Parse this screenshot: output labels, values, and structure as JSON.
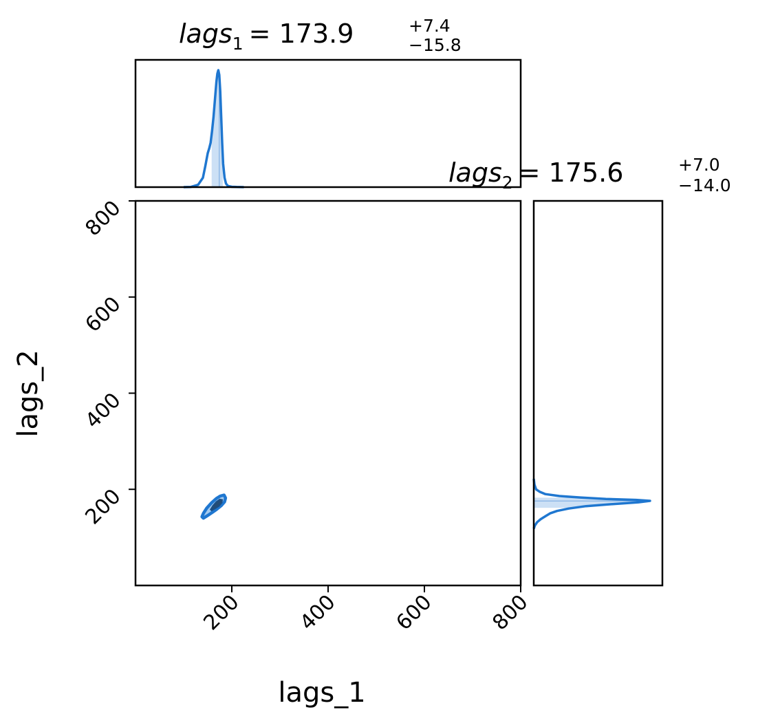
{
  "chart_data": [
    {
      "type": "area",
      "panel": "marginal-lags_1",
      "title": {
        "symbol": "lags",
        "subscript": "1",
        "equals": "= 173.9",
        "upper": "+7.4",
        "lower": "−15.8"
      },
      "median": 173.9,
      "err_plus": 7.4,
      "err_minus": 15.8,
      "x_range": [
        0,
        800
      ],
      "shaded_interval": [
        158.1,
        181.3
      ],
      "density_x": [
        100,
        115,
        130,
        140,
        145,
        150,
        153,
        156,
        159,
        162,
        165,
        168,
        170,
        172,
        174,
        176,
        178,
        180,
        182,
        185,
        188,
        192,
        200,
        210,
        225
      ],
      "density_y": [
        0.0,
        0.002,
        0.02,
        0.08,
        0.18,
        0.29,
        0.33,
        0.38,
        0.48,
        0.6,
        0.75,
        0.9,
        0.97,
        1.0,
        0.96,
        0.82,
        0.6,
        0.38,
        0.2,
        0.08,
        0.03,
        0.01,
        0.003,
        0.001,
        0.0
      ],
      "color": "#1f77d0"
    },
    {
      "type": "scatter",
      "panel": "joint",
      "xlabel": "lags_1",
      "ylabel": "lags_2",
      "xlim": [
        0,
        800
      ],
      "ylim": [
        0,
        800
      ],
      "x_ticks": [
        "200",
        "400",
        "600",
        "800"
      ],
      "y_ticks": [
        "200",
        "400",
        "600",
        "800"
      ],
      "contour_outer": [
        [
          138,
          143
        ],
        [
          141,
          150
        ],
        [
          148,
          161
        ],
        [
          158,
          172
        ],
        [
          168,
          181
        ],
        [
          176,
          186
        ],
        [
          184,
          188
        ],
        [
          187,
          182
        ],
        [
          185,
          174
        ],
        [
          178,
          166
        ],
        [
          168,
          158
        ],
        [
          158,
          151
        ],
        [
          149,
          145
        ],
        [
          141,
          140
        ]
      ],
      "contour_inner": [
        [
          156,
          158
        ],
        [
          161,
          166
        ],
        [
          168,
          174
        ],
        [
          175,
          179
        ],
        [
          180,
          178
        ],
        [
          179,
          172
        ],
        [
          173,
          165
        ],
        [
          165,
          160
        ],
        [
          158,
          156
        ]
      ],
      "color": "#1f77d0",
      "inner_color": "#173e66"
    },
    {
      "type": "area",
      "panel": "marginal-lags_2",
      "title": {
        "symbol": "lags",
        "subscript": "2",
        "equals": "= 175.6",
        "upper": "+7.0",
        "lower": "−14.0"
      },
      "median": 175.6,
      "err_plus": 7.0,
      "err_minus": 14.0,
      "y_range": [
        0,
        800
      ],
      "shaded_interval": [
        161.6,
        182.6
      ],
      "density_y": [
        118,
        125,
        132,
        138,
        144,
        150,
        155,
        160,
        165,
        170,
        173,
        176,
        178,
        180,
        183,
        186,
        190,
        195,
        200,
        210,
        222
      ],
      "density_x": [
        0.0,
        0.01,
        0.03,
        0.06,
        0.1,
        0.14,
        0.2,
        0.3,
        0.45,
        0.72,
        0.9,
        1.0,
        0.88,
        0.62,
        0.4,
        0.22,
        0.1,
        0.05,
        0.02,
        0.006,
        0.0
      ],
      "color": "#1f77d0"
    }
  ]
}
